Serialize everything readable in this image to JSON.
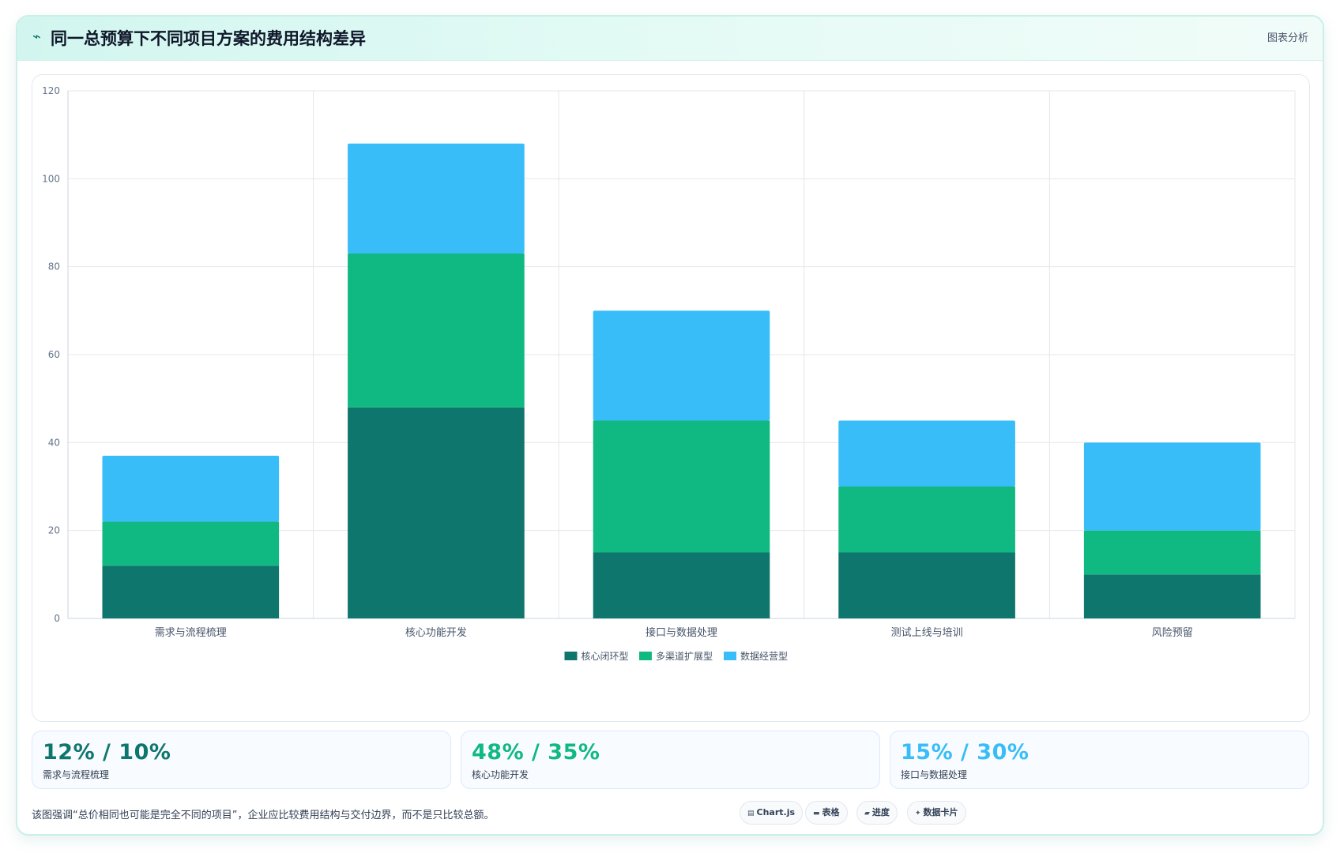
{
  "header": {
    "icon": "trend-line-icon",
    "title": "同一总预算下不同项目方案的费用结构差异",
    "right_link": "图表分析"
  },
  "chart_data": {
    "type": "bar",
    "stacked": true,
    "categories": [
      "需求与流程梳理",
      "核心功能开发",
      "接口与数据处理",
      "测试上线与培训",
      "风险预留"
    ],
    "series": [
      {
        "name": "核心闭环型",
        "color": "#0f766e",
        "values": [
          12,
          48,
          15,
          15,
          10
        ]
      },
      {
        "name": "多渠道扩展型",
        "color": "#10b981",
        "values": [
          10,
          35,
          30,
          15,
          10
        ]
      },
      {
        "name": "数据经营型",
        "color": "#38bdf8",
        "values": [
          15,
          25,
          25,
          15,
          20
        ]
      }
    ],
    "ylim": [
      0,
      120
    ],
    "yticks": [
      0,
      20,
      40,
      60,
      80,
      100,
      120
    ],
    "grid": true,
    "legend_position": "bottom"
  },
  "stats": [
    {
      "value": "12% / 10%",
      "label": "需求与流程梳理",
      "color": "#0f766e"
    },
    {
      "value": "48% / 35%",
      "label": "核心功能开发",
      "color": "#10b981"
    },
    {
      "value": "15% / 30%",
      "label": "接口与数据处理",
      "color": "#38bdf8"
    }
  ],
  "footnote": "该图强调“总价相同也可能是完全不同的项目”，企业应比较费用结构与交付边界，而不是只比较总额。",
  "pills": [
    {
      "icon": "chart-icon",
      "glyph": "▤",
      "label": "Chart.js"
    },
    {
      "icon": "table-icon",
      "glyph": "▬",
      "label": "表格"
    },
    {
      "icon": "progress-icon",
      "glyph": "▰",
      "label": "进度"
    },
    {
      "icon": "sparkle-icon",
      "glyph": "✦",
      "label": "数据卡片"
    }
  ]
}
